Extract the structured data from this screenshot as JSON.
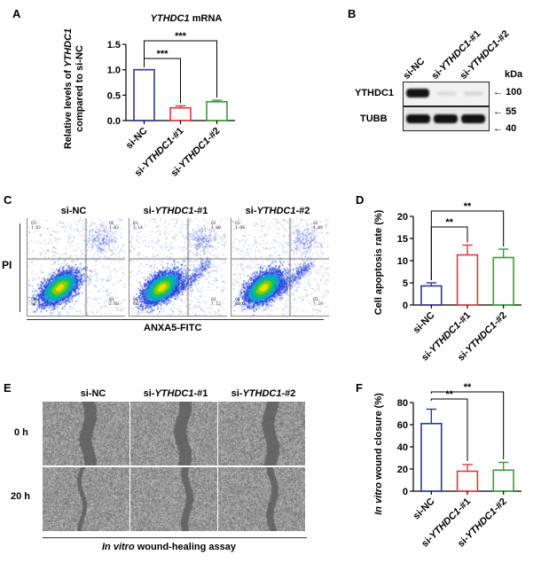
{
  "panels": {
    "a": "A",
    "b": "B",
    "c": "C",
    "d": "D",
    "e": "E",
    "f": "F"
  },
  "chart_data": [
    {
      "panel": "A",
      "type": "bar",
      "title_italic": "YTHDC1",
      "title_rest": " mRNA",
      "ylabel_line1_pre": "Relative levels of ",
      "ylabel_line1_italic": "YTHDC1",
      "ylabel_line2": "compared to si-NC",
      "categories": [
        "si-NC",
        "si-YTHDC1-#1",
        "si-YTHDC1-#2"
      ],
      "values": [
        1.0,
        0.25,
        0.37
      ],
      "errors": [
        0.0,
        0.04,
        0.03
      ],
      "ylim": [
        0,
        1.5
      ],
      "yticks": [
        "0.0",
        "0.5",
        "1.0",
        "1.5"
      ],
      "colors": [
        "#2b3990",
        "#e0383e",
        "#3a9a3a"
      ],
      "significance": [
        {
          "from": 0,
          "to": 1,
          "label": "***"
        },
        {
          "from": 0,
          "to": 2,
          "label": "***"
        }
      ]
    },
    {
      "panel": "D",
      "type": "bar",
      "ylabel": "Cell apoptosis rate (%)",
      "categories": [
        "si-NC",
        "si-YTHDC1-#1",
        "si-YTHDC1-#2"
      ],
      "values": [
        4.3,
        11.3,
        10.7
      ],
      "errors": [
        0.7,
        2.2,
        1.9
      ],
      "ylim": [
        0,
        20
      ],
      "yticks": [
        "0",
        "5",
        "10",
        "15",
        "20"
      ],
      "colors": [
        "#2b3990",
        "#e0383e",
        "#3a9a3a"
      ],
      "significance": [
        {
          "from": 0,
          "to": 1,
          "label": "**"
        },
        {
          "from": 0,
          "to": 2,
          "label": "**"
        }
      ]
    },
    {
      "panel": "F",
      "type": "bar",
      "ylabel_italic": "In vitro",
      "ylabel_rest": " wound closure (%)",
      "categories": [
        "si-NC",
        "si-YTHDC1-#1",
        "si-YTHDC1-#2"
      ],
      "values": [
        61,
        18,
        19
      ],
      "errors": [
        13,
        6,
        7
      ],
      "ylim": [
        0,
        80
      ],
      "yticks": [
        "0",
        "20",
        "40",
        "60",
        "80"
      ],
      "colors": [
        "#2b3990",
        "#e0383e",
        "#3a9a3a"
      ],
      "significance": [
        {
          "from": 0,
          "to": 1,
          "label": "**"
        },
        {
          "from": 0,
          "to": 2,
          "label": "**"
        }
      ]
    }
  ],
  "blot": {
    "lanes": [
      "si-NC",
      "si-YTHDC1-#1",
      "si-YTHDC1-#2"
    ],
    "kda_label": "kDa",
    "rows": [
      {
        "name": "YTHDC1",
        "markers": [
          "100"
        ]
      },
      {
        "name": "TUBB",
        "markers": [
          "55",
          "40"
        ]
      }
    ]
  },
  "flow": {
    "columns": [
      "si-NC",
      "si-YTHDC1-#1",
      "si-YTHDC1-#2"
    ],
    "ylabel": "PI",
    "xlabel": "ANXA5-FITC",
    "quadrants": [
      {
        "q1": "Q1",
        "q1v": "1.23",
        "q2": "Q2",
        "q2v": "1.83",
        "q3": "Q3",
        "q3v": "2.50",
        "q4": "Q4",
        "q4v": "94.4"
      },
      {
        "q1": "Q1",
        "q1v": "2.14",
        "q2": "Q2",
        "q2v": "4.00",
        "q3": "Q3",
        "q3v": "7.12",
        "q4": "Q4",
        "q4v": "86.3"
      },
      {
        "q1": "Q1",
        "q1v": "1.98",
        "q2": "Q2",
        "q2v": "4.08",
        "q3": "Q3",
        "q3v": "7.19",
        "q4": "Q4",
        "q4v": "86.6"
      }
    ]
  },
  "wound": {
    "columns": [
      "si-NC",
      "si-YTHDC1-#1",
      "si-YTHDC1-#2"
    ],
    "rows": [
      "0 h",
      "20 h"
    ],
    "caption_italic": "In vitro",
    "caption_rest": " wound-healing assay"
  }
}
